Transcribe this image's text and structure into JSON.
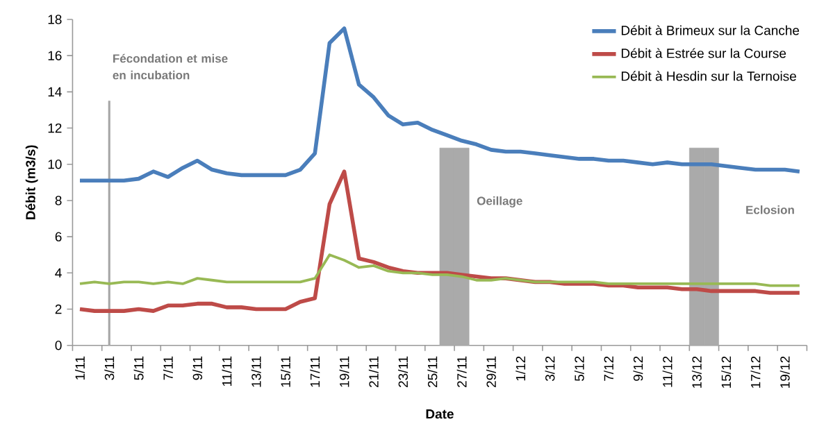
{
  "chart_data": {
    "type": "line",
    "xlabel": "Date",
    "ylabel": "Débit (m3/s)",
    "categories": [
      "1/11",
      null,
      "3/11",
      null,
      "5/11",
      null,
      "7/11",
      null,
      "9/11",
      null,
      "11/11",
      null,
      "13/11",
      null,
      "15/11",
      null,
      "17/11",
      null,
      "19/11",
      null,
      "21/11",
      null,
      "23/11",
      null,
      "25/11",
      null,
      "27/11",
      null,
      "29/11",
      null,
      "1/12",
      null,
      "3/12",
      null,
      "5/12",
      null,
      "7/12",
      null,
      "9/12",
      null,
      "11/12",
      null,
      "13/12",
      null,
      "15/12",
      null,
      "17/12",
      null,
      "19/12",
      null
    ],
    "series": [
      {
        "name": "Débit à Brimeux sur la Canche",
        "color": "#4a7ebb",
        "values": [
          9.1,
          9.1,
          9.1,
          9.1,
          9.2,
          9.6,
          9.3,
          9.8,
          10.2,
          9.7,
          9.5,
          9.4,
          9.4,
          9.4,
          9.4,
          9.7,
          10.6,
          16.7,
          17.5,
          14.4,
          13.7,
          12.7,
          12.2,
          12.3,
          11.9,
          11.6,
          11.3,
          11.1,
          10.8,
          10.7,
          10.7,
          10.6,
          10.5,
          10.4,
          10.3,
          10.3,
          10.2,
          10.2,
          10.1,
          10.0,
          10.1,
          10.0,
          10.0,
          10.0,
          9.9,
          9.8,
          9.7,
          9.7,
          9.7,
          9.6
        ]
      },
      {
        "name": "Débit à Estrée sur la Course",
        "color": "#be4b48",
        "values": [
          2.0,
          1.9,
          1.9,
          1.9,
          2.0,
          1.9,
          2.2,
          2.2,
          2.3,
          2.3,
          2.1,
          2.1,
          2.0,
          2.0,
          2.0,
          2.4,
          2.6,
          7.8,
          9.6,
          4.8,
          4.6,
          4.3,
          4.1,
          4.0,
          4.0,
          4.0,
          3.9,
          3.8,
          3.7,
          3.7,
          3.6,
          3.5,
          3.5,
          3.4,
          3.4,
          3.4,
          3.3,
          3.3,
          3.2,
          3.2,
          3.2,
          3.1,
          3.1,
          3.0,
          3.0,
          3.0,
          3.0,
          2.9,
          2.9,
          2.9
        ]
      },
      {
        "name": "Débit à Hesdin sur la Ternoise",
        "color": "#98b954",
        "values": [
          3.4,
          3.5,
          3.4,
          3.5,
          3.5,
          3.4,
          3.5,
          3.4,
          3.7,
          3.6,
          3.5,
          3.5,
          3.5,
          3.5,
          3.5,
          3.5,
          3.7,
          5.0,
          4.7,
          4.3,
          4.4,
          4.1,
          4.0,
          4.0,
          3.9,
          3.9,
          3.8,
          3.6,
          3.6,
          3.7,
          3.6,
          3.5,
          3.5,
          3.5,
          3.5,
          3.5,
          3.4,
          3.4,
          3.4,
          3.4,
          3.4,
          3.4,
          3.4,
          3.4,
          3.4,
          3.4,
          3.4,
          3.3,
          3.3,
          3.3
        ]
      },
      {
        "type": "bar",
        "color": "#a6a6a6",
        "values": [
          null,
          null,
          13.5,
          null,
          null,
          null,
          null,
          null,
          null,
          null,
          null,
          null,
          null,
          null,
          null,
          null,
          null,
          null,
          null,
          null,
          null,
          null,
          null,
          null,
          null,
          null,
          null,
          null,
          null,
          null,
          null,
          null,
          null,
          null,
          null,
          null,
          null,
          null,
          null,
          null,
          null,
          null,
          null,
          null,
          null,
          null,
          null,
          null,
          null,
          null
        ]
      },
      {
        "type": "bar",
        "color": "#aaaaaa",
        "values": [
          null,
          null,
          null,
          null,
          null,
          null,
          null,
          null,
          null,
          null,
          null,
          null,
          null,
          null,
          null,
          null,
          null,
          null,
          null,
          null,
          null,
          null,
          null,
          null,
          null,
          10.9,
          10.9,
          null,
          null,
          null,
          null,
          null,
          null,
          null,
          null,
          null,
          null,
          null,
          null,
          null,
          null,
          null,
          10.9,
          10.9,
          null,
          null,
          null,
          null,
          null,
          null
        ]
      }
    ],
    "ylim": [
      0,
      18
    ],
    "yticks": [
      0,
      2,
      4,
      6,
      8,
      10,
      12,
      14,
      16,
      18
    ],
    "legend": "top right",
    "annotations": [
      "Fécondation et mise en incubation",
      "Oeillage",
      "Eclosion"
    ]
  }
}
